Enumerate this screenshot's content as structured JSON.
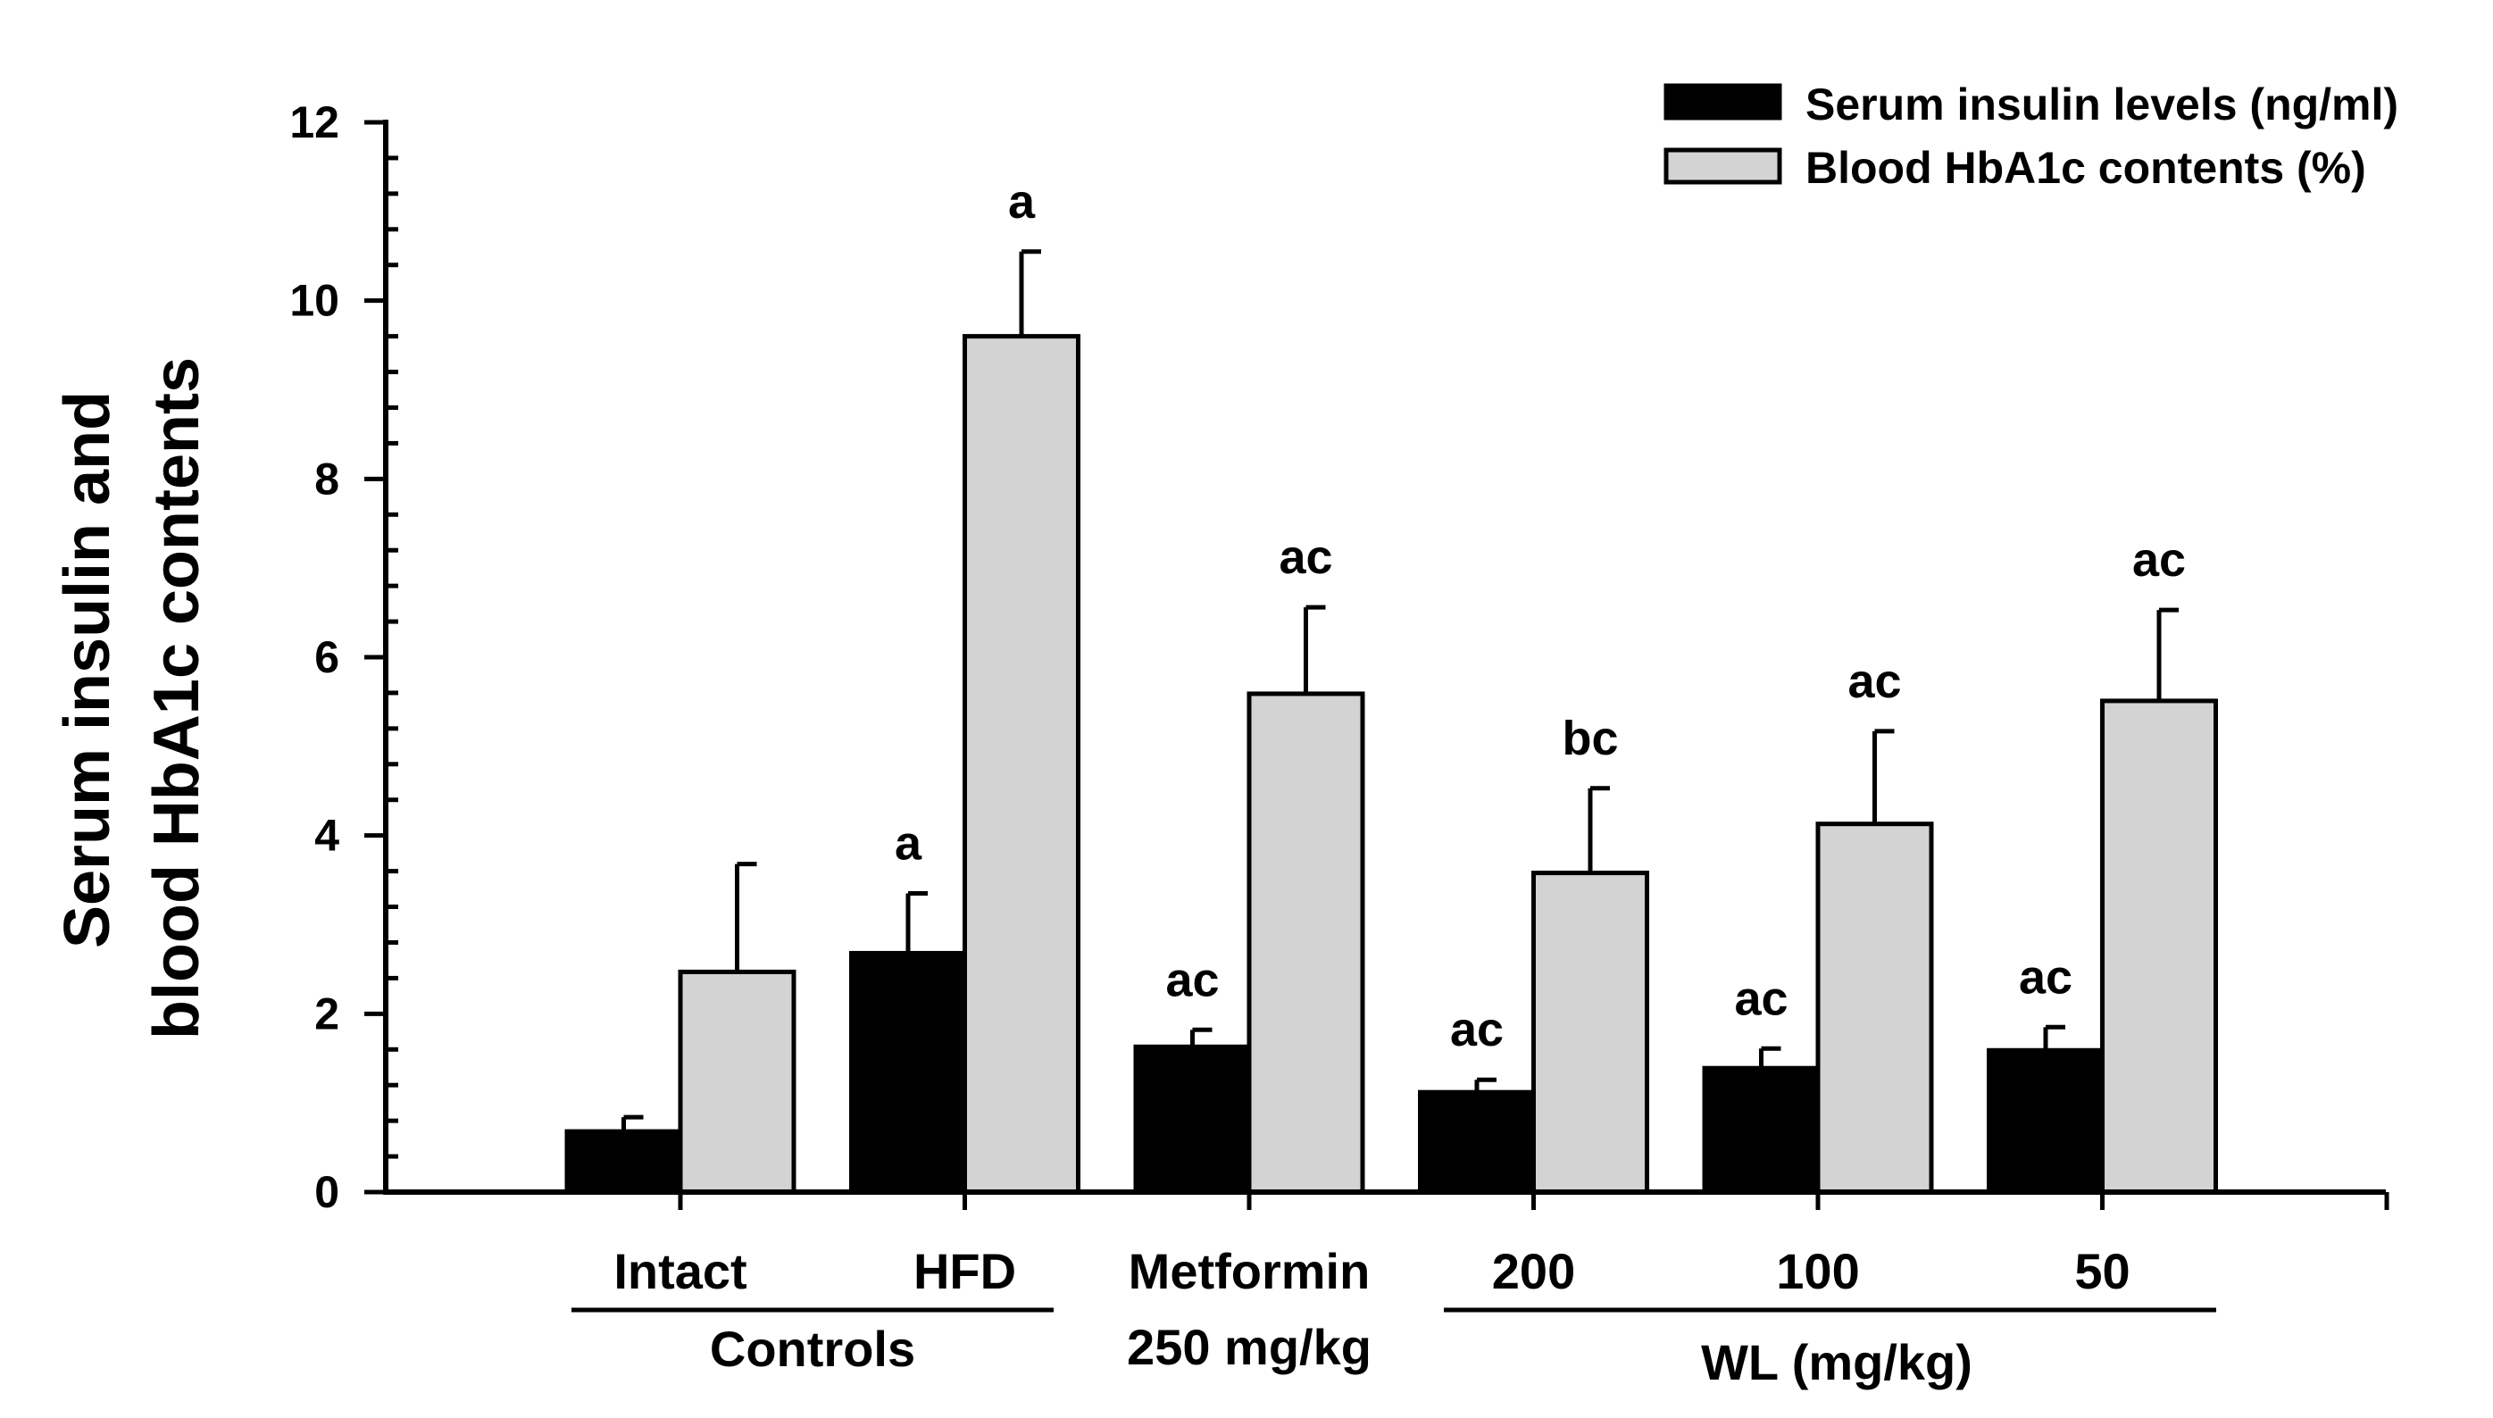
{
  "chart_data": {
    "type": "bar",
    "ylabel_lines": [
      "Serum insulin and",
      "blood HbA1c contents"
    ],
    "xlabel": "",
    "ylim": [
      0,
      12
    ],
    "y_ticks": [
      0,
      2,
      4,
      6,
      8,
      10,
      12
    ],
    "y_tick_labels": [
      "0",
      "2",
      "4",
      "6",
      "8",
      "10",
      "12"
    ],
    "y_minor_step": 0.4,
    "categories": [
      "Intact",
      "HFD",
      "Metformin",
      "200",
      "100",
      "50"
    ],
    "category_sublabels": [
      "",
      "",
      "250 mg/kg",
      "",
      "",
      ""
    ],
    "groups": [
      {
        "label": "Controls",
        "categories": [
          "Intact",
          "HFD"
        ]
      },
      {
        "label": "WL (mg/kg)",
        "categories": [
          "200",
          "100",
          "50"
        ]
      }
    ],
    "series": [
      {
        "name": "Serum insulin levels (ng/ml)",
        "color": "#000000",
        "values": [
          0.68,
          2.68,
          1.63,
          1.12,
          1.39,
          1.59
        ],
        "errors": [
          0.16,
          0.67,
          0.19,
          0.14,
          0.22,
          0.26
        ],
        "annotations": [
          "",
          "a",
          "ac",
          "ac",
          "ac",
          "ac"
        ]
      },
      {
        "name": "Blood HbA1c contents (%)",
        "color": "#d3d3d3",
        "values": [
          2.47,
          9.6,
          5.59,
          3.58,
          4.13,
          5.51
        ],
        "errors": [
          1.21,
          0.95,
          0.97,
          0.95,
          1.04,
          1.02
        ],
        "annotations": [
          "",
          "a",
          "ac",
          "bc",
          "ac",
          "ac"
        ]
      }
    ],
    "legend_position": "top-right",
    "grid": false
  }
}
